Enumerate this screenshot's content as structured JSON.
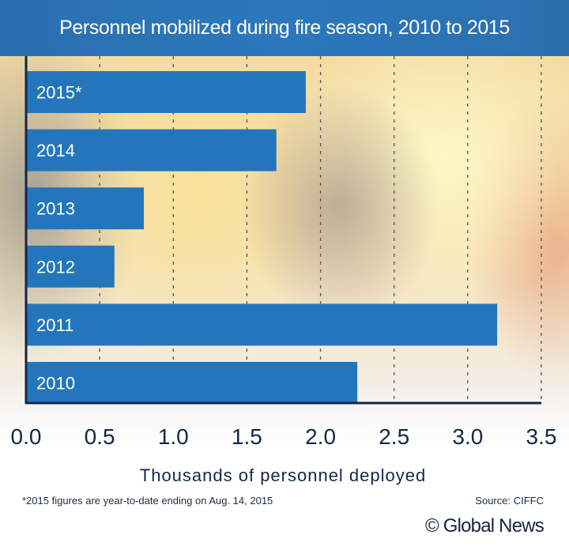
{
  "chart_data": {
    "type": "bar",
    "orientation": "horizontal",
    "title": "Personnel mobilized during fire season, 2010 to 2015",
    "categories": [
      "2015*",
      "2014",
      "2013",
      "2012",
      "2011",
      "2010"
    ],
    "values": [
      1.9,
      1.7,
      0.8,
      0.6,
      3.2,
      2.25
    ],
    "xlabel": "Thousands of personnel deployed",
    "xlim": [
      0,
      3.5
    ],
    "xticks": [
      "0.0",
      "0.5",
      "1.0",
      "1.5",
      "2.0",
      "2.5",
      "3.0",
      "3.5"
    ],
    "grid": "vertical dashed",
    "bar_color": "#2376bb",
    "note": "*2015 figures are year-to-date ending on Aug. 14, 2015",
    "source_label": "Source: ",
    "source": "CIFFC"
  },
  "brand": "© Global News"
}
